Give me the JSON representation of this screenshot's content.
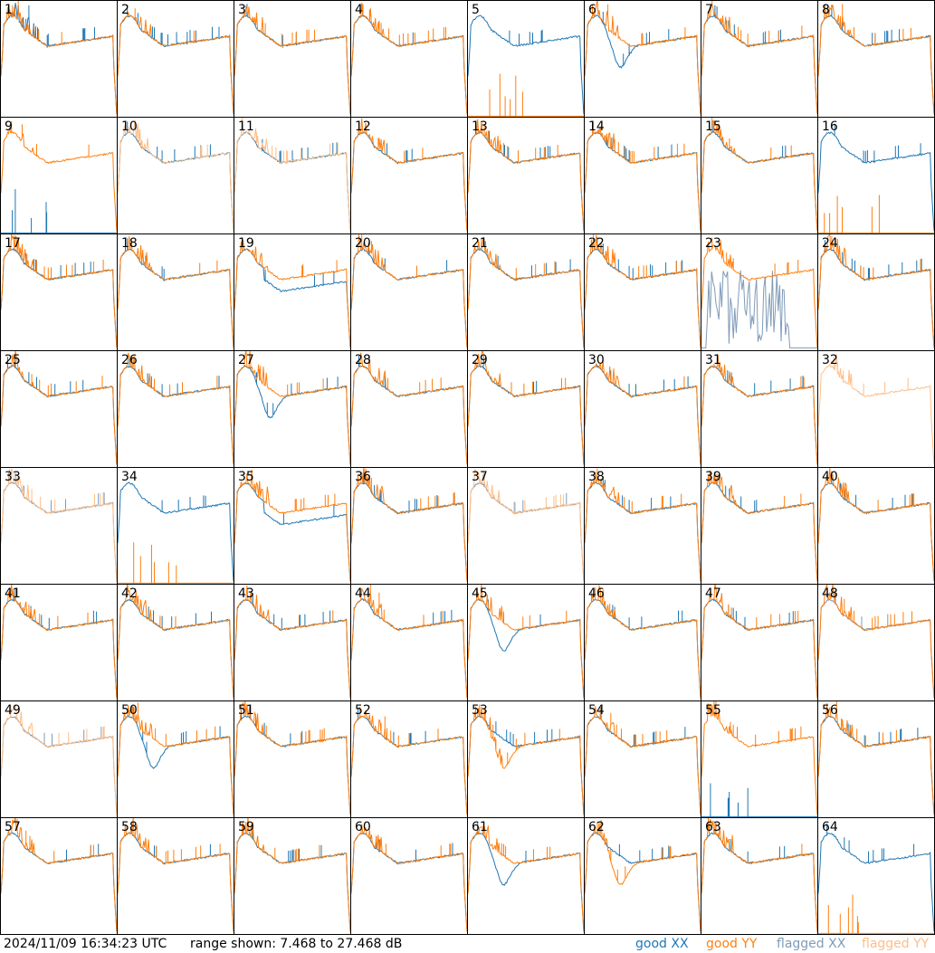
{
  "footer": {
    "timestamp": "2024/11/09 16:34:23 UTC",
    "range_text": "range shown: 7.468 to 27.468 dB",
    "legend": {
      "good_xx": "good XX",
      "good_yy": "good YY",
      "flagged_xx": "flagged XX",
      "flagged_yy": "flagged YY"
    }
  },
  "colors": {
    "good_xx": "#1f77b4",
    "good_yy": "#ff7f0e",
    "flagged_xx": "#7f9bb8",
    "flagged_yy": "#ffbe86"
  },
  "chart_data": {
    "type": "line",
    "grid_layout": "8x8",
    "y_range_db": [
      7.468,
      27.468
    ],
    "panels": [
      {
        "id": "1",
        "xx": "good",
        "yy": "good",
        "style": "spiky"
      },
      {
        "id": "2",
        "xx": "good",
        "yy": "good",
        "style": "normal"
      },
      {
        "id": "3",
        "xx": "good",
        "yy": "good",
        "style": "normal"
      },
      {
        "id": "4",
        "xx": "good",
        "yy": "good",
        "style": "normal"
      },
      {
        "id": "5",
        "xx": "good",
        "yy": "good",
        "style": "yy_dead"
      },
      {
        "id": "6",
        "xx": "good",
        "yy": "good",
        "style": "xx_dip"
      },
      {
        "id": "7",
        "xx": "good",
        "yy": "good",
        "style": "normal"
      },
      {
        "id": "8",
        "xx": "good",
        "yy": "good",
        "style": "normal"
      },
      {
        "id": "9",
        "xx": "good",
        "yy": "good",
        "style": "xx_dead"
      },
      {
        "id": "10",
        "xx": "good",
        "yy": "flagged",
        "style": "normal"
      },
      {
        "id": "11",
        "xx": "good",
        "yy": "flagged",
        "style": "normal"
      },
      {
        "id": "12",
        "xx": "good",
        "yy": "good",
        "style": "normal"
      },
      {
        "id": "13",
        "xx": "good",
        "yy": "good",
        "style": "normal"
      },
      {
        "id": "14",
        "xx": "good",
        "yy": "good",
        "style": "normal"
      },
      {
        "id": "15",
        "xx": "good",
        "yy": "good",
        "style": "normal"
      },
      {
        "id": "16",
        "xx": "good",
        "yy": "good",
        "style": "yy_dead"
      },
      {
        "id": "17",
        "xx": "good",
        "yy": "good",
        "style": "normal"
      },
      {
        "id": "18",
        "xx": "good",
        "yy": "good",
        "style": "normal"
      },
      {
        "id": "19",
        "xx": "good",
        "yy": "good",
        "style": "xx_low"
      },
      {
        "id": "20",
        "xx": "good",
        "yy": "good",
        "style": "normal"
      },
      {
        "id": "21",
        "xx": "good",
        "yy": "good",
        "style": "normal"
      },
      {
        "id": "22",
        "xx": "good",
        "yy": "good",
        "style": "normal"
      },
      {
        "id": "23",
        "xx": "flagged",
        "yy": "good",
        "style": "xx_noise"
      },
      {
        "id": "24",
        "xx": "good",
        "yy": "good",
        "style": "normal"
      },
      {
        "id": "25",
        "xx": "good",
        "yy": "good",
        "style": "normal"
      },
      {
        "id": "26",
        "xx": "good",
        "yy": "good",
        "style": "normal"
      },
      {
        "id": "27",
        "xx": "good",
        "yy": "good",
        "style": "xx_dip"
      },
      {
        "id": "28",
        "xx": "good",
        "yy": "good",
        "style": "normal"
      },
      {
        "id": "29",
        "xx": "good",
        "yy": "good",
        "style": "normal"
      },
      {
        "id": "30",
        "xx": "good",
        "yy": "good",
        "style": "normal"
      },
      {
        "id": "31",
        "xx": "good",
        "yy": "good",
        "style": "normal"
      },
      {
        "id": "32",
        "xx": "flagged",
        "yy": "flagged",
        "style": "yy_only"
      },
      {
        "id": "33",
        "xx": "flagged",
        "yy": "flagged",
        "style": "normal"
      },
      {
        "id": "34",
        "xx": "good",
        "yy": "good",
        "style": "yy_dead"
      },
      {
        "id": "35",
        "xx": "good",
        "yy": "good",
        "style": "xx_low"
      },
      {
        "id": "36",
        "xx": "good",
        "yy": "good",
        "style": "normal"
      },
      {
        "id": "37",
        "xx": "flagged",
        "yy": "flagged",
        "style": "normal"
      },
      {
        "id": "38",
        "xx": "good",
        "yy": "good",
        "style": "normal"
      },
      {
        "id": "39",
        "xx": "good",
        "yy": "good",
        "style": "normal"
      },
      {
        "id": "40",
        "xx": "good",
        "yy": "good",
        "style": "normal"
      },
      {
        "id": "41",
        "xx": "good",
        "yy": "good",
        "style": "normal"
      },
      {
        "id": "42",
        "xx": "good",
        "yy": "good",
        "style": "normal"
      },
      {
        "id": "43",
        "xx": "good",
        "yy": "good",
        "style": "normal"
      },
      {
        "id": "44",
        "xx": "good",
        "yy": "good",
        "style": "normal"
      },
      {
        "id": "45",
        "xx": "good",
        "yy": "good",
        "style": "xx_dip"
      },
      {
        "id": "46",
        "xx": "good",
        "yy": "good",
        "style": "normal"
      },
      {
        "id": "47",
        "xx": "good",
        "yy": "good",
        "style": "normal"
      },
      {
        "id": "48",
        "xx": "flagged",
        "yy": "good",
        "style": "normal"
      },
      {
        "id": "49",
        "xx": "flagged",
        "yy": "flagged",
        "style": "normal"
      },
      {
        "id": "50",
        "xx": "good",
        "yy": "good",
        "style": "xx_dip"
      },
      {
        "id": "51",
        "xx": "good",
        "yy": "good",
        "style": "normal"
      },
      {
        "id": "52",
        "xx": "good",
        "yy": "good",
        "style": "normal"
      },
      {
        "id": "53",
        "xx": "good",
        "yy": "good",
        "style": "yy_dip"
      },
      {
        "id": "54",
        "xx": "good",
        "yy": "good",
        "style": "normal"
      },
      {
        "id": "55",
        "xx": "good",
        "yy": "good",
        "style": "xx_dead"
      },
      {
        "id": "56",
        "xx": "good",
        "yy": "good",
        "style": "normal"
      },
      {
        "id": "57",
        "xx": "good",
        "yy": "good",
        "style": "normal"
      },
      {
        "id": "58",
        "xx": "good",
        "yy": "good",
        "style": "normal"
      },
      {
        "id": "59",
        "xx": "good",
        "yy": "good",
        "style": "normal"
      },
      {
        "id": "60",
        "xx": "good",
        "yy": "good",
        "style": "normal"
      },
      {
        "id": "61",
        "xx": "good",
        "yy": "good",
        "style": "xx_dip"
      },
      {
        "id": "62",
        "xx": "good",
        "yy": "good",
        "style": "yy_dip"
      },
      {
        "id": "63",
        "xx": "good",
        "yy": "good",
        "style": "normal"
      },
      {
        "id": "64",
        "xx": "good",
        "yy": "good",
        "style": "yy_dead"
      }
    ]
  }
}
